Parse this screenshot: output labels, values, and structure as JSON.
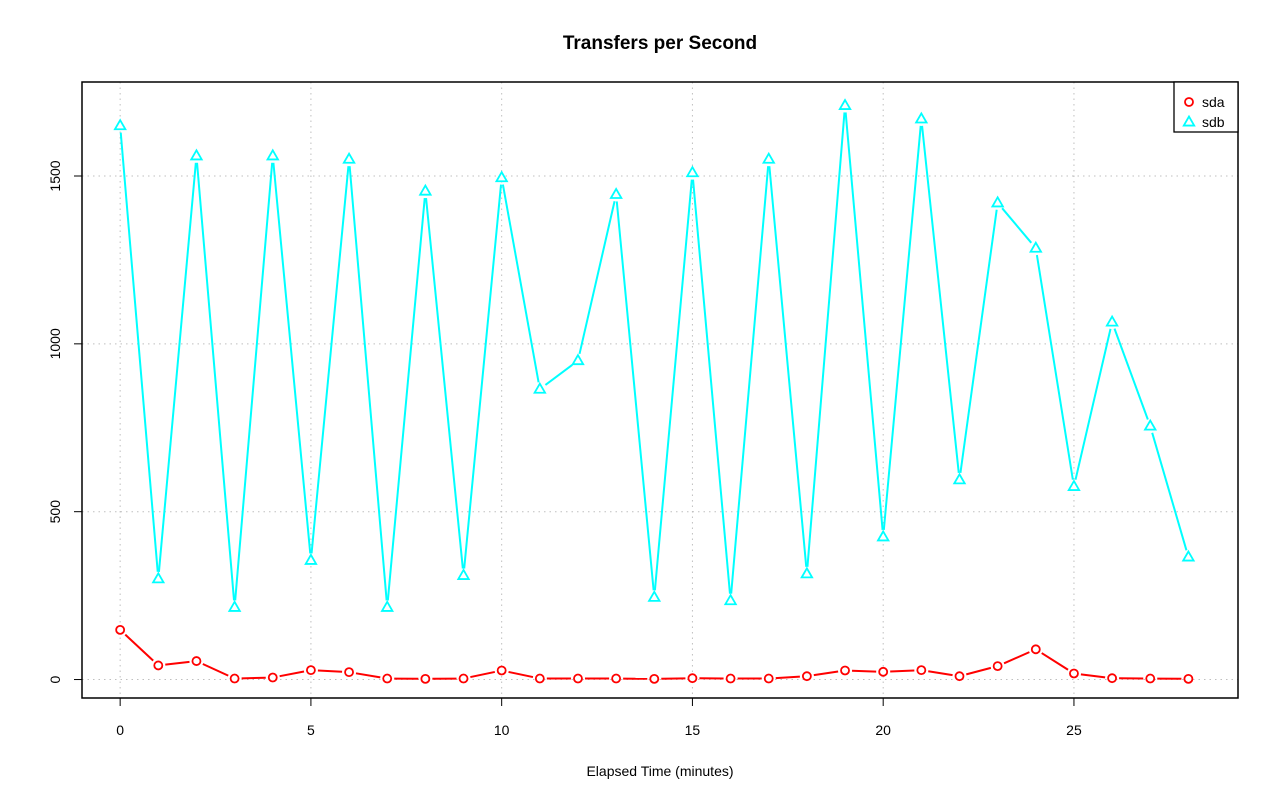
{
  "chart_data": {
    "type": "line",
    "title": "Transfers per Second",
    "xlabel": "Elapsed Time (minutes)",
    "ylabel": "",
    "x": [
      0,
      1,
      2,
      3,
      4,
      5,
      6,
      7,
      8,
      9,
      10,
      11,
      12,
      13,
      14,
      15,
      16,
      17,
      18,
      19,
      20,
      21,
      22,
      23,
      24,
      25,
      26,
      27,
      28
    ],
    "xlim": [
      -1,
      29.3
    ],
    "ylim": [
      -55,
      1780
    ],
    "xticks": [
      0,
      5,
      10,
      15,
      20,
      25
    ],
    "yticks": [
      0,
      500,
      1000,
      1500
    ],
    "grid": true,
    "legend_position": "top-right",
    "series": [
      {
        "name": "sda",
        "color": "#ff0000",
        "marker": "circle",
        "values": [
          148,
          42,
          55,
          3,
          6,
          28,
          22,
          3,
          2,
          3,
          27,
          3,
          3,
          3,
          2,
          4,
          3,
          3,
          10,
          27,
          23,
          28,
          10,
          40,
          90,
          18,
          4,
          3,
          2
        ]
      },
      {
        "name": "sdb",
        "color": "#00ffff",
        "marker": "triangle",
        "values": [
          1650,
          300,
          1560,
          215,
          1560,
          355,
          1550,
          215,
          1455,
          310,
          1495,
          865,
          950,
          1445,
          245,
          1510,
          235,
          1550,
          315,
          1710,
          425,
          1670,
          595,
          1420,
          1285,
          575,
          1065,
          755,
          365
        ]
      }
    ]
  }
}
